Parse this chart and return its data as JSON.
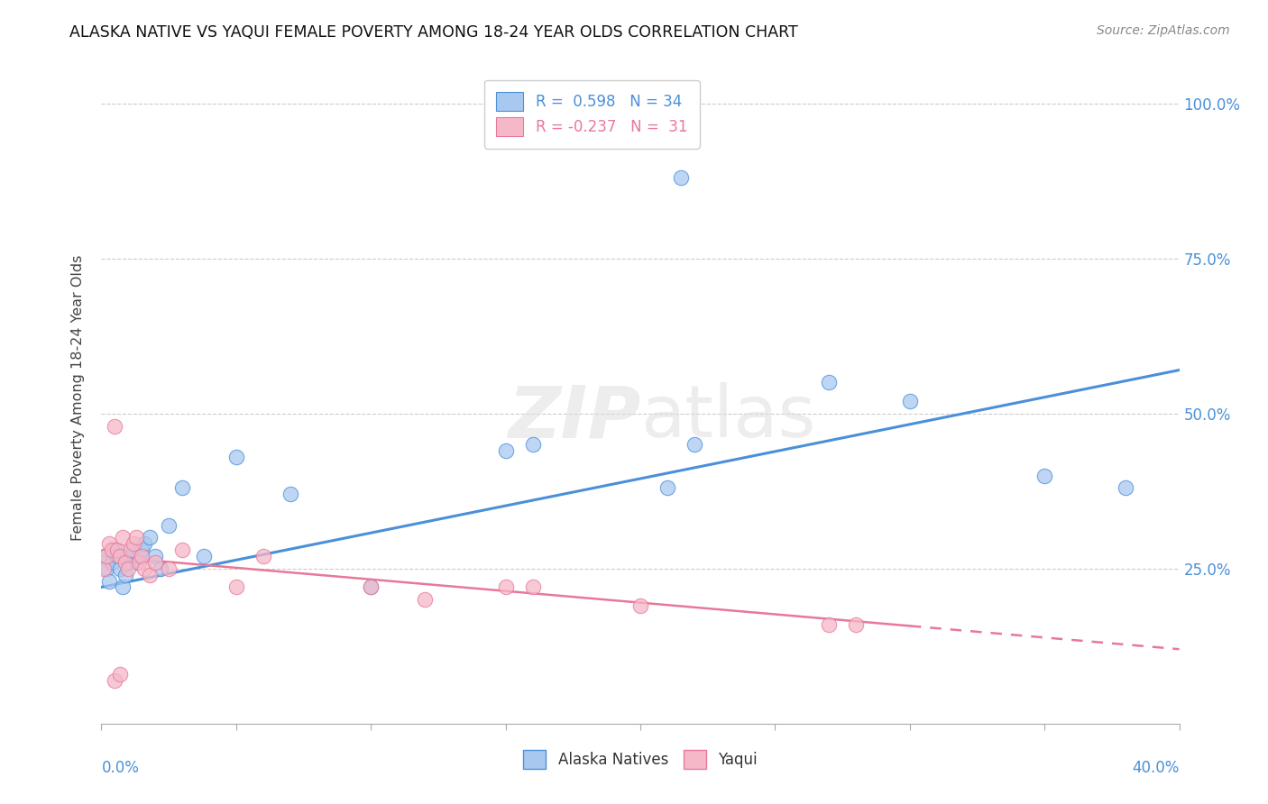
{
  "title": "ALASKA NATIVE VS YAQUI FEMALE POVERTY AMONG 18-24 YEAR OLDS CORRELATION CHART",
  "source": "Source: ZipAtlas.com",
  "ylabel": "Female Poverty Among 18-24 Year Olds",
  "watermark": "ZIPatlas",
  "alaska_color": "#A8C8F0",
  "yaqui_color": "#F5B8C8",
  "alaska_line_color": "#4A90D9",
  "yaqui_line_color": "#E8789A",
  "xlim": [
    0.0,
    0.4
  ],
  "ylim": [
    0.0,
    1.05
  ],
  "bg_color": "#FFFFFF",
  "grid_color": "#CCCCCC",
  "alaska_x": [
    0.001,
    0.002,
    0.003,
    0.004,
    0.005,
    0.006,
    0.007,
    0.008,
    0.009,
    0.01,
    0.011,
    0.012,
    0.013,
    0.014,
    0.015,
    0.016,
    0.018,
    0.02,
    0.022,
    0.025,
    0.03,
    0.038,
    0.05,
    0.07,
    0.1,
    0.15,
    0.16,
    0.21,
    0.22,
    0.27,
    0.3,
    0.35,
    0.215,
    0.38
  ],
  "alaska_y": [
    0.27,
    0.25,
    0.23,
    0.26,
    0.28,
    0.27,
    0.25,
    0.22,
    0.24,
    0.26,
    0.27,
    0.28,
    0.26,
    0.27,
    0.28,
    0.29,
    0.3,
    0.27,
    0.25,
    0.32,
    0.38,
    0.27,
    0.43,
    0.37,
    0.22,
    0.44,
    0.45,
    0.38,
    0.45,
    0.55,
    0.52,
    0.4,
    0.88,
    0.38
  ],
  "yaqui_x": [
    0.001,
    0.002,
    0.003,
    0.004,
    0.005,
    0.006,
    0.007,
    0.008,
    0.009,
    0.01,
    0.011,
    0.012,
    0.013,
    0.014,
    0.015,
    0.016,
    0.018,
    0.02,
    0.025,
    0.03,
    0.05,
    0.06,
    0.1,
    0.12,
    0.15,
    0.16,
    0.2,
    0.27,
    0.005,
    0.007,
    0.28
  ],
  "yaqui_y": [
    0.25,
    0.27,
    0.29,
    0.28,
    0.48,
    0.28,
    0.27,
    0.3,
    0.26,
    0.25,
    0.28,
    0.29,
    0.3,
    0.26,
    0.27,
    0.25,
    0.24,
    0.26,
    0.25,
    0.28,
    0.22,
    0.27,
    0.22,
    0.2,
    0.22,
    0.22,
    0.19,
    0.16,
    0.07,
    0.08,
    0.16
  ],
  "alaska_trend_x": [
    0.0,
    0.4
  ],
  "alaska_trend_y": [
    0.22,
    0.57
  ],
  "yaqui_trend_x": [
    0.0,
    0.4
  ],
  "yaqui_trend_y": [
    0.27,
    0.12
  ]
}
